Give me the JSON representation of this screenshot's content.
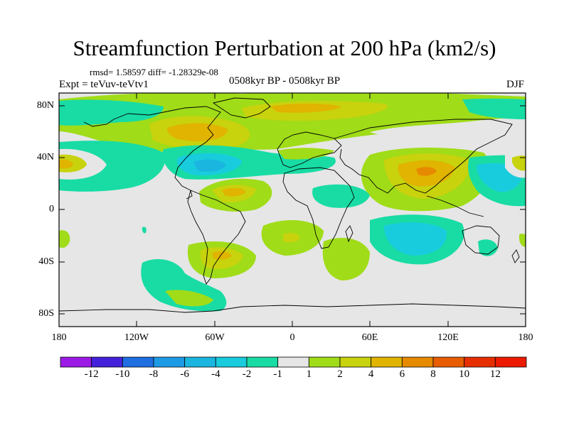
{
  "title": "Streamfunction Perturbation at 200 hPa (km2/s)",
  "stats": "rmsd= 1.58597 diff= -1.28329e-08",
  "experiment": "Expt = teVuv-teVtv1",
  "period": "0508kyr BP - 0508kyr BP",
  "season": "DJF",
  "map": {
    "projection": "cylindrical equidistant",
    "lon_range": [
      -180,
      180
    ],
    "lat_range": [
      -90,
      90
    ],
    "x_ticks": [
      "180",
      "120W",
      "60W",
      "0",
      "60E",
      "120E",
      "180"
    ],
    "y_ticks": [
      "80N",
      "40N",
      "0",
      "40S",
      "80S"
    ],
    "background_color": "#e6e6e6"
  },
  "colorbar": {
    "labels": [
      "-12",
      "-10",
      "-8",
      "-6",
      "-4",
      "-2",
      "-1",
      "1",
      "2",
      "4",
      "6",
      "8",
      "10",
      "12"
    ],
    "colors": [
      "#9c1ae6",
      "#4422dc",
      "#1f6ee2",
      "#1d9ae6",
      "#1ab6df",
      "#18ccdd",
      "#18dca4",
      "#e6e6e6",
      "#a0dc18",
      "#c8d20d",
      "#e0b400",
      "#e68a00",
      "#e85c00",
      "#e62e00",
      "#ec1a00"
    ]
  }
}
